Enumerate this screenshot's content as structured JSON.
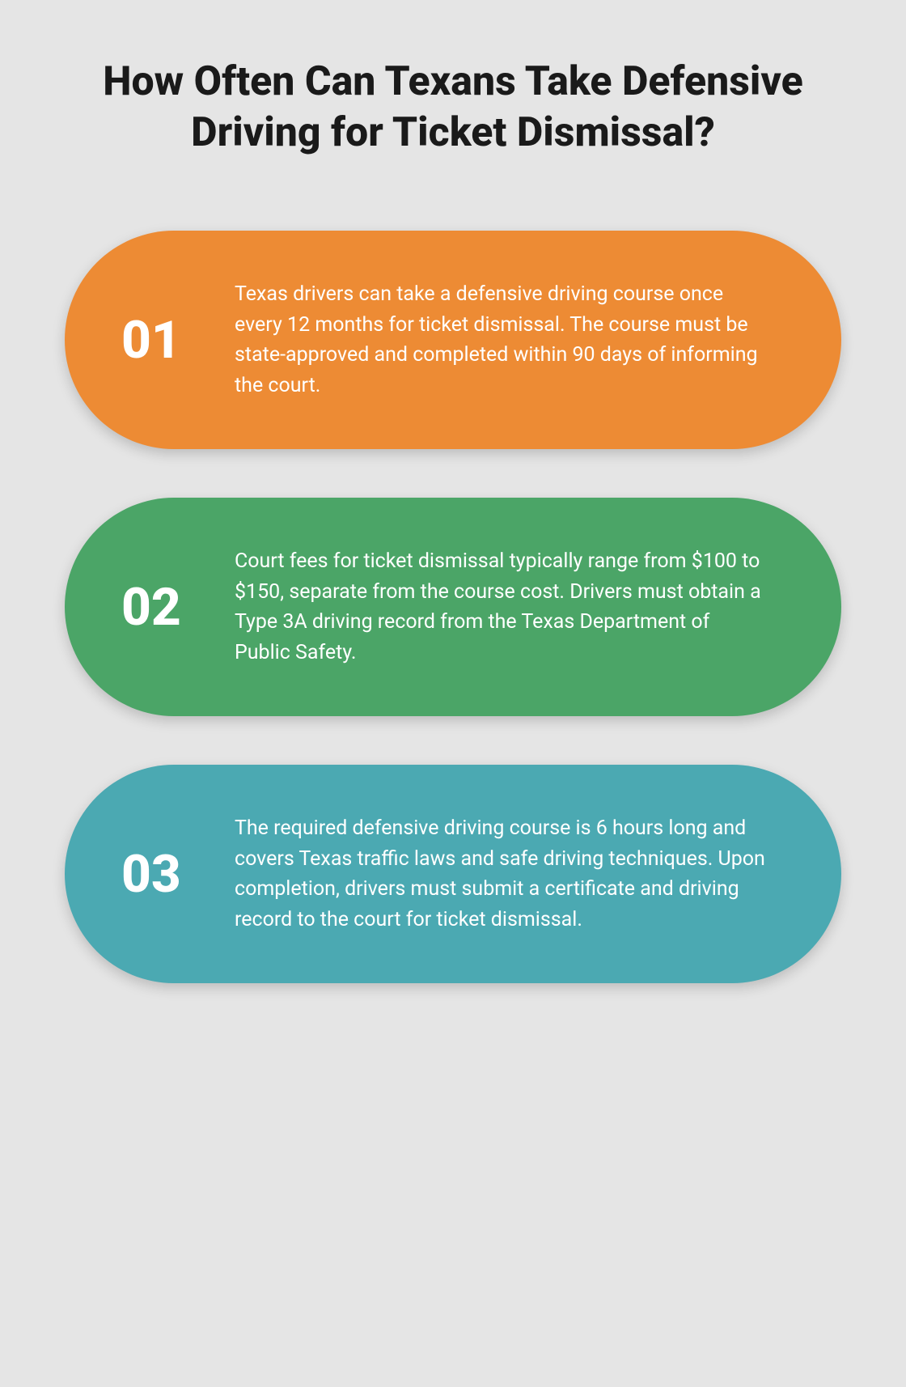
{
  "title": "How Often Can Texans Take Defensive Driving for Ticket Dismissal?",
  "cards": [
    {
      "number": "01",
      "text": "Texas drivers can take a defensive driving course once every 12 months for ticket dismissal. The course must be state-approved and completed within 90 days of informing the court.",
      "background_color": "#ed8b34"
    },
    {
      "number": "02",
      "text": "Court fees for ticket dismissal typically range from $100 to $150, separate from the course cost. Drivers must obtain a Type 3A driving record from the Texas Department of Public Safety.",
      "background_color": "#4ba567"
    },
    {
      "number": "03",
      "text": "The required defensive driving course is 6 hours long and covers Texas traffic laws and safe driving techniques. Upon completion, drivers must submit a certificate and driving record to the court for ticket dismissal.",
      "background_color": "#4ba9b2"
    }
  ]
}
